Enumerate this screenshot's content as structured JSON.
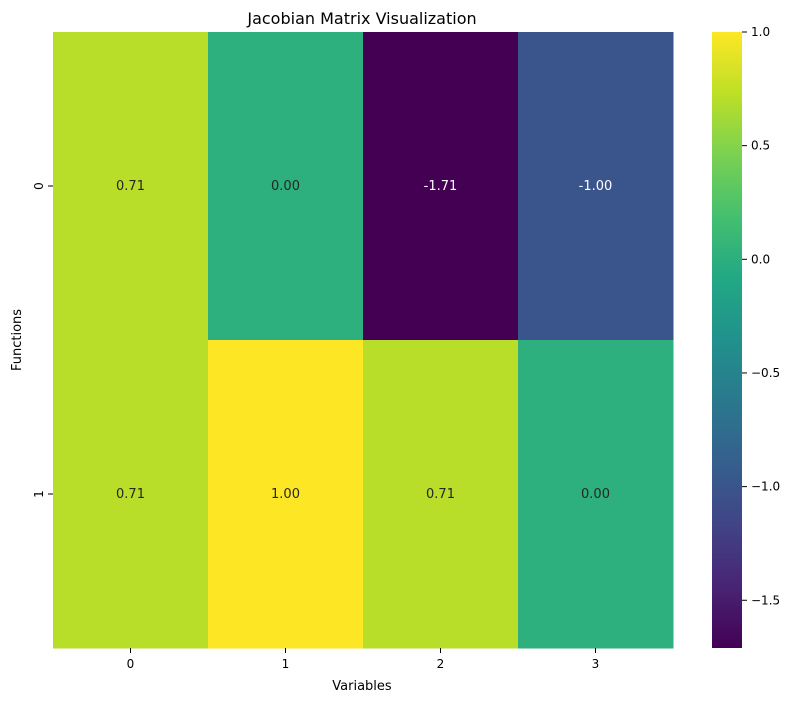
{
  "chart_data": {
    "type": "heatmap",
    "title": "Jacobian Matrix Visualization",
    "xlabel": "Variables",
    "ylabel": "Functions",
    "x_categories": [
      "0",
      "1",
      "2",
      "3"
    ],
    "y_categories": [
      "0",
      "1"
    ],
    "values": [
      [
        0.71,
        0.0,
        -1.71,
        -1.0
      ],
      [
        0.71,
        1.0,
        0.71,
        0.0
      ]
    ],
    "cell_labels": [
      [
        "0.71",
        "0.00",
        "-1.71",
        "-1.00"
      ],
      [
        "0.71",
        "1.00",
        "0.71",
        "0.00"
      ]
    ],
    "colormap": "viridis",
    "vmin": -1.71,
    "vmax": 1.0,
    "colorbar": {
      "ticks": [
        -1.5,
        -1.0,
        -0.5,
        0.0,
        0.5,
        1.0
      ],
      "tick_labels": [
        "−1.5",
        "−1.0",
        "−0.5",
        "0.0",
        "0.5",
        "1.0"
      ]
    },
    "grid": false,
    "legend": "colorbar-right"
  }
}
